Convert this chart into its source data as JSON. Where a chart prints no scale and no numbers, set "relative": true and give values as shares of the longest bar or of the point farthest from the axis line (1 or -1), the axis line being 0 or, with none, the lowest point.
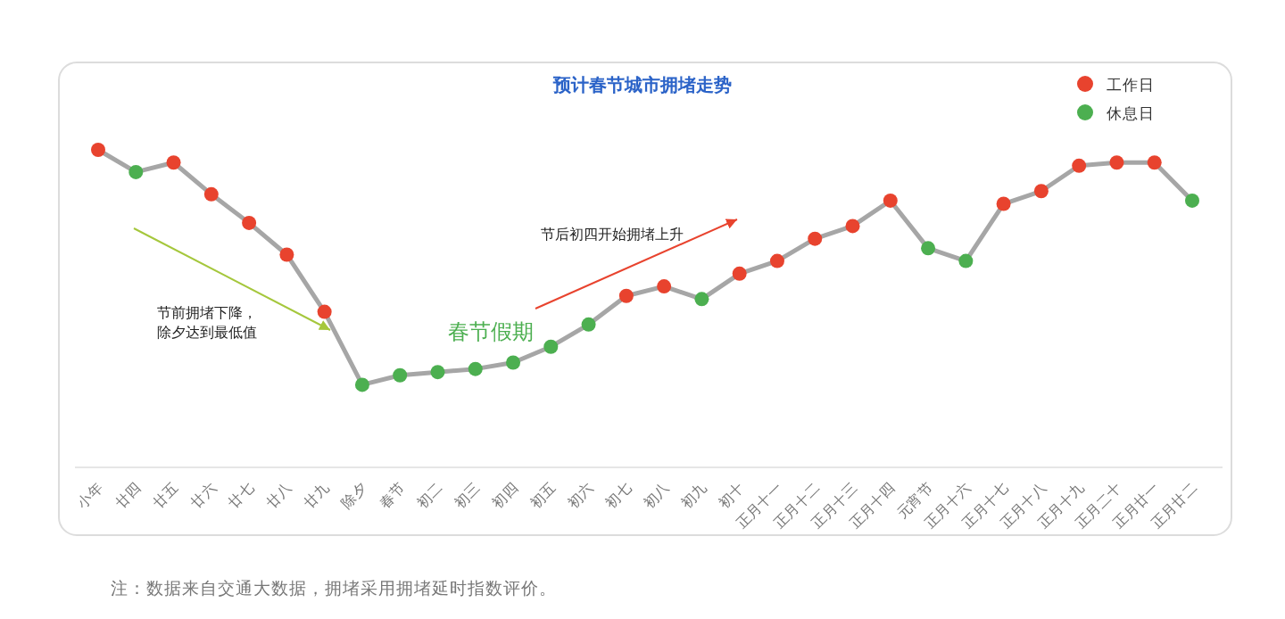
{
  "chart_data": {
    "type": "line",
    "title": "预计春节城市拥堵走势",
    "relative": true,
    "legend": "top right",
    "categories": [
      "小年",
      "廿四",
      "廿五",
      "廿六",
      "廿七",
      "廿八",
      "廿九",
      "除夕",
      "春节",
      "初二",
      "初三",
      "初四",
      "初五",
      "初六",
      "初七",
      "初八",
      "初九",
      "初十",
      "正月十一",
      "正月十二",
      "正月十三",
      "正月十四",
      "元宵节",
      "正月十六",
      "正月十七",
      "正月十八",
      "正月十九",
      "正月二十",
      "正月廿一",
      "正月廿二"
    ],
    "series": [
      {
        "type": "line",
        "marker": "none",
        "color": "#a6a6a6",
        "values": [
          1.0,
          0.93,
          0.96,
          0.86,
          0.77,
          0.67,
          0.49,
          0.26,
          0.29,
          0.3,
          0.31,
          0.33,
          0.38,
          0.45,
          0.54,
          0.57,
          0.53,
          0.61,
          0.65,
          0.72,
          0.76,
          0.84,
          0.69,
          0.65,
          0.83,
          0.87,
          0.95,
          0.96,
          0.96,
          0.84
        ]
      },
      {
        "type": "scatter",
        "marker": "circle",
        "name": "工作日",
        "color": "#e8432e",
        "values": [
          1.0,
          null,
          0.96,
          0.86,
          0.77,
          0.67,
          0.49,
          null,
          null,
          null,
          null,
          null,
          null,
          null,
          0.54,
          0.57,
          null,
          0.61,
          0.65,
          0.72,
          0.76,
          0.84,
          null,
          null,
          0.83,
          0.87,
          0.95,
          0.96,
          0.96,
          null
        ]
      },
      {
        "type": "scatter",
        "marker": "circle",
        "name": "休息日",
        "color": "#4caf50",
        "values": [
          null,
          0.93,
          null,
          null,
          null,
          null,
          null,
          0.26,
          0.29,
          0.3,
          0.31,
          0.33,
          0.38,
          0.45,
          null,
          null,
          0.53,
          null,
          null,
          null,
          null,
          null,
          0.69,
          0.65,
          null,
          null,
          null,
          null,
          null,
          0.84
        ]
      }
    ],
    "annotations": [
      "节前拥堵下降，除夕达到最低值",
      "节后初四开始拥堵上升",
      "春节假期",
      "注：数据来自交通大数据，拥堵采用拥堵延时指数评价。"
    ]
  }
}
